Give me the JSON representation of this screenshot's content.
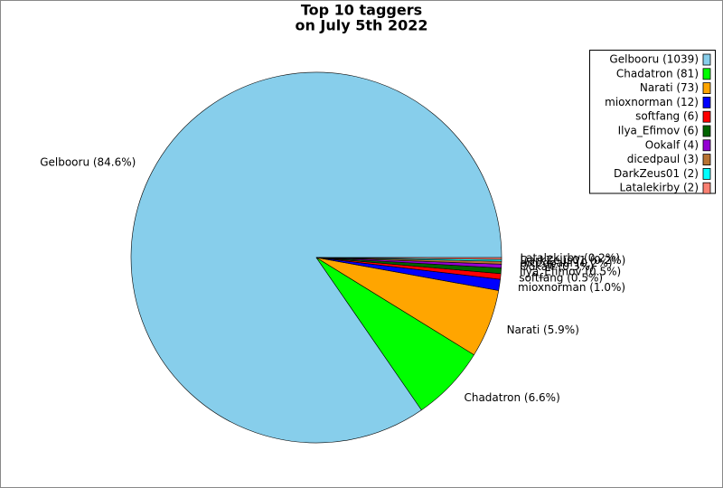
{
  "chart_data": {
    "type": "pie",
    "title": [
      "Top 10 taggers",
      "on July 5th 2022"
    ],
    "categories": [
      "Gelbooru",
      "Chadatron",
      "Narati",
      "mioxnorman",
      "softfang",
      "Ilya_Efimov",
      "Ookalf",
      "dicedpaul",
      "DarkZeus01",
      "Latalekirby"
    ],
    "values": [
      1039,
      81,
      73,
      12,
      6,
      6,
      4,
      3,
      2,
      2
    ],
    "colors": [
      "#87ceeb",
      "#00ff00",
      "#ffa500",
      "#0000ff",
      "#ff0000",
      "#006400",
      "#9400d3",
      "#b87333",
      "#00ffff",
      "#fa8072"
    ],
    "slice_labels": [
      "Gelbooru (84.6%)",
      "Chadatron (6.6%)",
      "Narati (5.9%)",
      "mioxnorman (1.0%)",
      "softfang (0.5%)",
      "Ilya_Efimov (0.5%)",
      "Ookalf (0.3%)",
      "dicedpaul (0.2%)",
      "DarkZeus01 (0.2%)",
      "Latalekirby (0.2%)"
    ],
    "legend_labels": [
      "Gelbooru (1039)",
      "Chadatron (81)",
      "Narati (73)",
      "mioxnorman (12)",
      "softfang (6)",
      "Ilya_Efimov (6)",
      "Ookalf (4)",
      "dicedpaul (3)",
      "DarkZeus01 (2)",
      "Latalekirby (2)"
    ],
    "start_angle": 0,
    "legend": "upper right"
  }
}
